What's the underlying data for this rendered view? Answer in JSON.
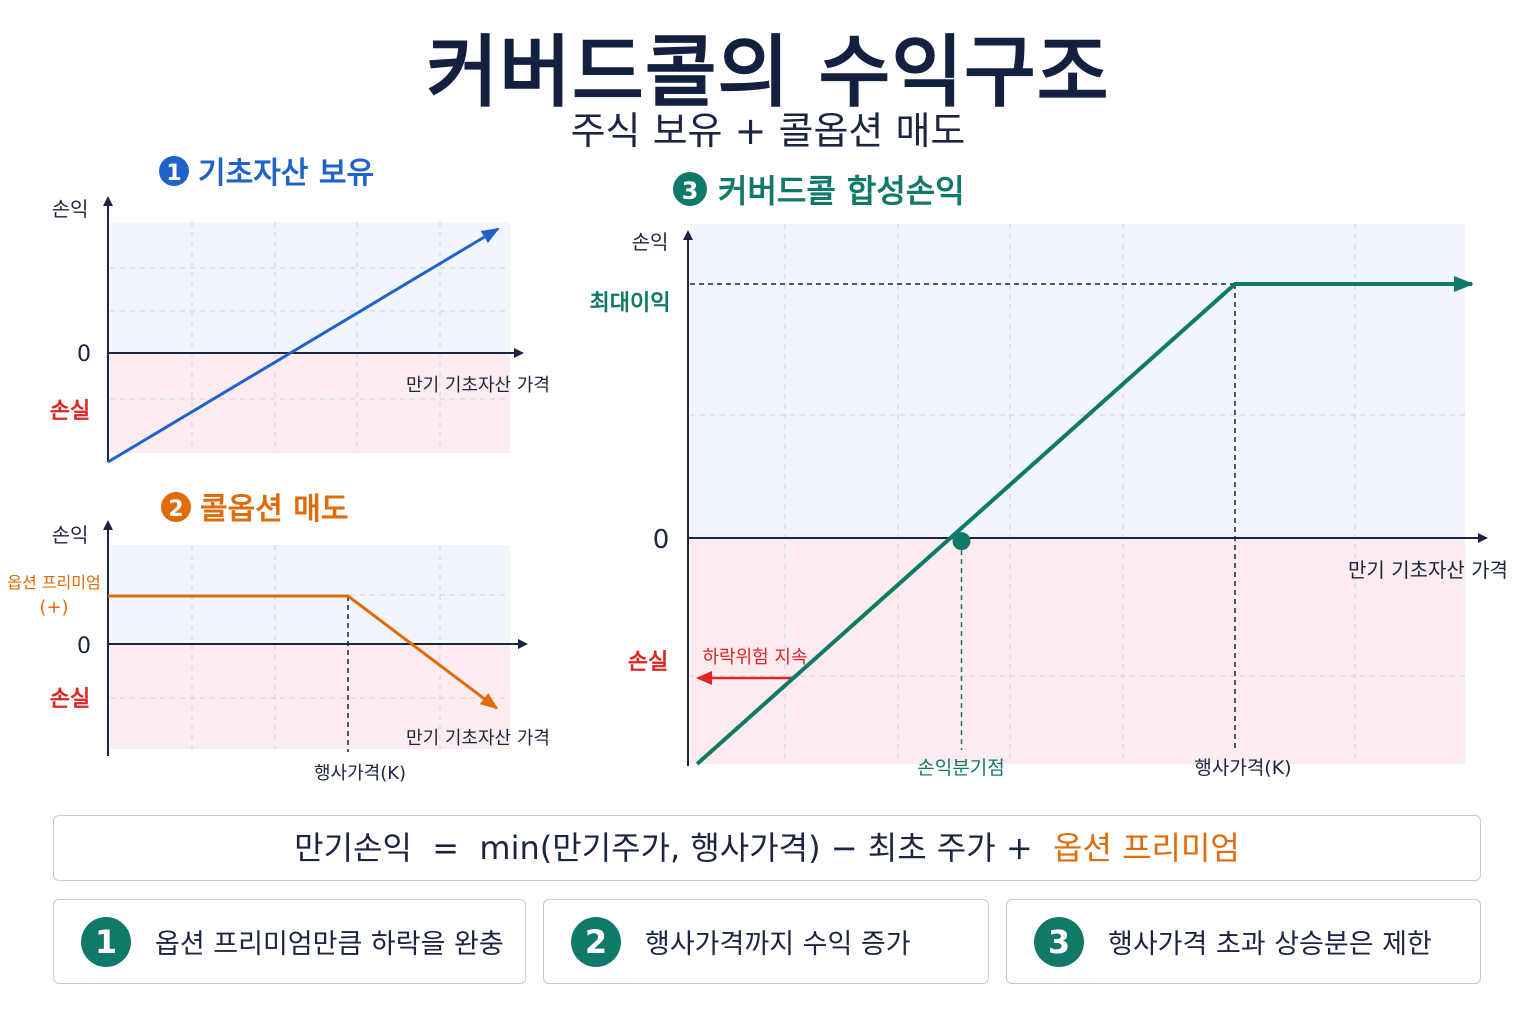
{
  "header": {
    "title": "커버드콜의 수익구조",
    "subtitle": "주식 보유 + 콜옵션 매도"
  },
  "colors": {
    "blue": "#1f63c9",
    "orange": "#e06b0a",
    "teal": "#11796a",
    "red": "#e02424",
    "axis": "#1b2440",
    "profit_zone": "#f1f6fc",
    "loss_zone": "#fcecef"
  },
  "chart_data": [
    {
      "type": "line",
      "title": "기초자산 보유",
      "number": "1",
      "ylabel": "손익",
      "xlabel": "만기 기초자산 가격",
      "y_zero_label": "0",
      "loss_label": "손실",
      "series": [
        {
          "values": [
            [
              0,
              -3
            ],
            [
              6,
              3.8
            ]
          ]
        }
      ],
      "xlim": [
        0,
        6
      ],
      "ylim": [
        -3,
        4
      ],
      "grid": true
    },
    {
      "type": "line",
      "title": "콜옵션 매도",
      "number": "2",
      "ylabel": "손익",
      "xlabel": "만기 기초자산 가격",
      "y_zero_label": "0",
      "loss_label": "손실",
      "premium_label": "옵션 프리미엄",
      "premium_sign": "(+)",
      "strike_label": "행사가격(K)",
      "strike_x": 3,
      "premium": 1,
      "series": [
        {
          "values": [
            [
              0,
              1
            ],
            [
              3,
              1
            ],
            [
              4.86,
              -1.2
            ]
          ]
        }
      ],
      "xlim": [
        0,
        5
      ],
      "ylim": [
        -2,
        2
      ],
      "grid": true
    },
    {
      "type": "line",
      "title": "커버드콜 합성손익",
      "number": "3",
      "ylabel": "손익",
      "xlabel": "만기 기초자산 가격",
      "y_zero_label": "0",
      "loss_label": "손실",
      "max_profit_label": "최대이익",
      "breakeven_label": "손익분기점",
      "breakeven_x": 3,
      "strike_label": "행사가격(K)",
      "strike_x": 6,
      "max_profit": 3,
      "downside_label": "하락위험 지속",
      "series": [
        {
          "values": [
            [
              0.1,
              -2.6
            ],
            [
              6,
              3
            ],
            [
              8.6,
              3
            ]
          ]
        }
      ],
      "xlim": [
        0,
        8.6
      ],
      "ylim": [
        -2.6,
        3.7
      ],
      "grid": true
    }
  ],
  "formula": {
    "lhs": "만기손익",
    "eq": "=",
    "body": "min(만기주가, 행사가격) − 최초 주가 +",
    "premium": "옵션 프리미엄"
  },
  "notes": [
    {
      "number": "1",
      "text": "옵션 프리미엄만큼 하락을 완충"
    },
    {
      "number": "2",
      "text": "행사가격까지 수익 증가"
    },
    {
      "number": "3",
      "text": "행사가격 초과 상승분은 제한"
    }
  ]
}
